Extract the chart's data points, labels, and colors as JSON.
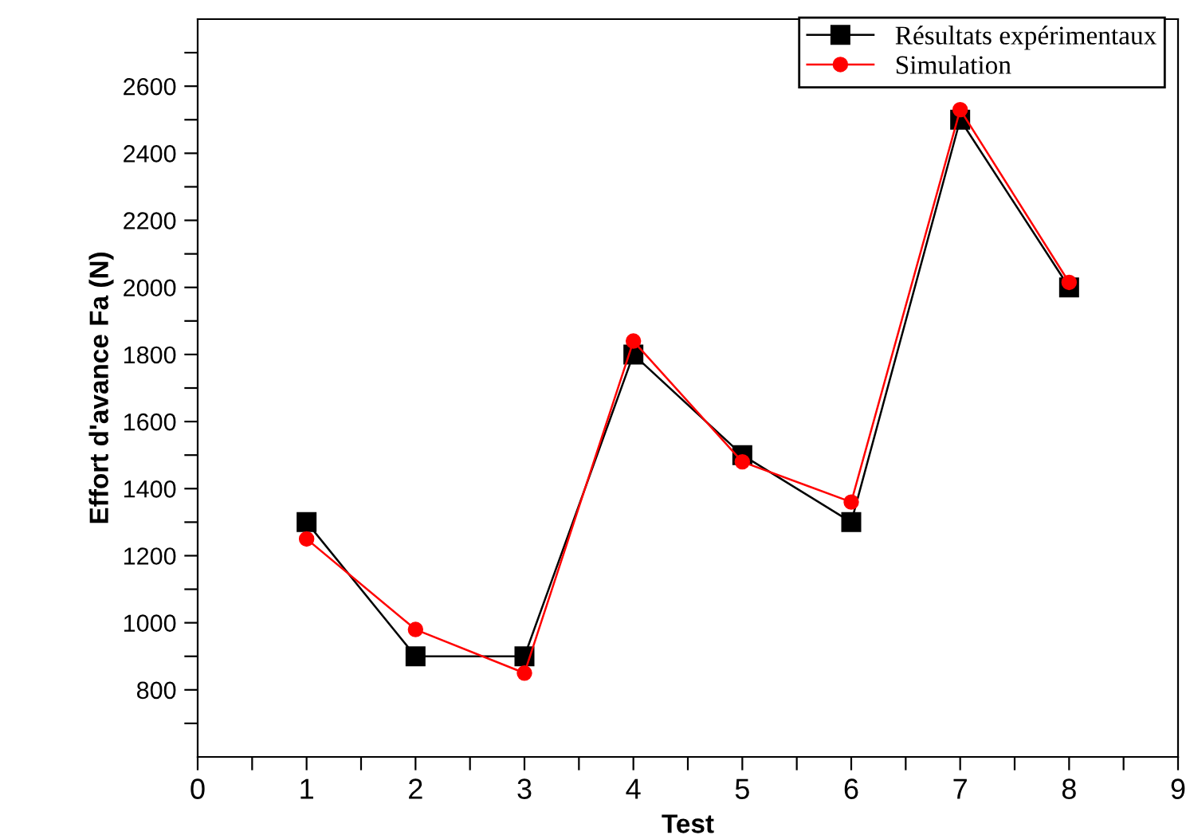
{
  "chart_data": {
    "type": "line",
    "xlabel": "Test",
    "ylabel": "Effort d'avance Fa (N)",
    "x": [
      1,
      2,
      3,
      4,
      5,
      6,
      7,
      8
    ],
    "series": [
      {
        "name": "Résultats expérimentaux",
        "color": "#000000",
        "marker": "square",
        "values": [
          1300,
          900,
          900,
          1800,
          1500,
          1300,
          2500,
          2000
        ]
      },
      {
        "name": "Simulation",
        "color": "#ff0000",
        "marker": "circle",
        "values": [
          1250,
          980,
          850,
          1840,
          1480,
          1360,
          2530,
          2015
        ]
      }
    ],
    "xlim": [
      0,
      9
    ],
    "xticks": [
      0,
      {
        "value": 0.5,
        "label": null
      },
      1,
      {
        "value": 1.5,
        "label": null
      },
      2,
      {
        "value": 2.5,
        "label": null
      },
      3,
      {
        "value": 3.5,
        "label": null
      },
      4,
      {
        "value": 4.5,
        "label": null
      },
      5,
      {
        "value": 5.5,
        "label": null
      },
      6,
      {
        "value": 6.5,
        "label": null
      },
      7,
      {
        "value": 7.5,
        "label": null
      },
      8,
      {
        "value": 8.5,
        "label": null
      },
      9
    ],
    "ylim": [
      600,
      2800
    ],
    "yticks": [
      {
        "value": 700,
        "label": null
      },
      800,
      {
        "value": 900,
        "label": null
      },
      1000,
      {
        "value": 1100,
        "label": null
      },
      1200,
      {
        "value": 1300,
        "label": null
      },
      1400,
      {
        "value": 1500,
        "label": null
      },
      1600,
      {
        "value": 1700,
        "label": null
      },
      1800,
      {
        "value": 1900,
        "label": null
      },
      2000,
      {
        "value": 2100,
        "label": null
      },
      2200,
      {
        "value": 2300,
        "label": null
      },
      2400,
      {
        "value": 2500,
        "label": null
      },
      2600,
      {
        "value": 2700,
        "label": null
      }
    ],
    "grid": false,
    "legend": "top right",
    "line_style": "solid"
  }
}
